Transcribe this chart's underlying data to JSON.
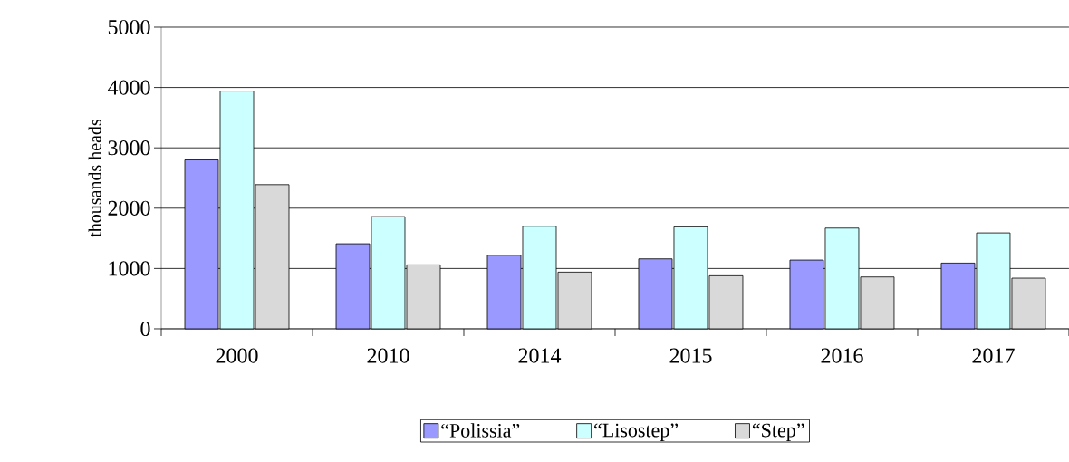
{
  "chart_data": {
    "type": "bar",
    "ylabel": "thousands heads",
    "categories": [
      "2000",
      "2010",
      "2014",
      "2015",
      "2016",
      "2017"
    ],
    "series": [
      {
        "name": "“Polissia”",
        "color": "#9999ff",
        "values": [
          2800,
          1410,
          1220,
          1160,
          1140,
          1090
        ]
      },
      {
        "name": "“Lisostep”",
        "color": "#ccffff",
        "values": [
          3940,
          1860,
          1700,
          1690,
          1670,
          1590
        ]
      },
      {
        "name": "“Step”",
        "color": "#d9d9d9",
        "values": [
          2390,
          1060,
          940,
          880,
          860,
          840
        ]
      }
    ],
    "ylim": [
      0,
      5000
    ],
    "yticks": [
      0,
      1000,
      2000,
      3000,
      4000,
      5000
    ],
    "grid": "y",
    "legend": "bottom"
  }
}
